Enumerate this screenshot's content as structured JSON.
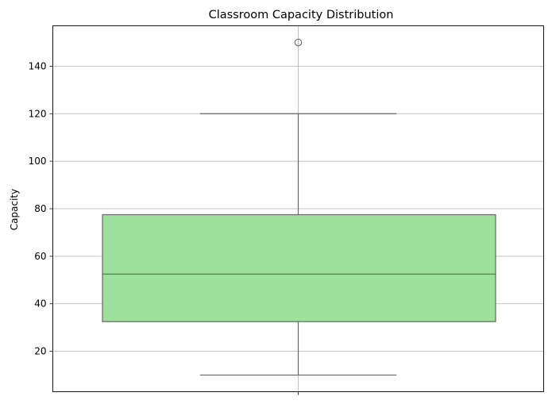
{
  "chart_data": {
    "type": "box",
    "title": "Classroom Capacity Distribution",
    "xlabel": "",
    "ylabel": "Capacity",
    "ylim": [
      3,
      157
    ],
    "yticks": [
      20,
      40,
      60,
      80,
      100,
      120,
      140
    ],
    "grid": true,
    "box": {
      "whisker_low": 10,
      "q1": 32.5,
      "median": 52.5,
      "q3": 77.5,
      "whisker_high": 120,
      "outliers": [
        150
      ]
    },
    "colors": {
      "box_fill": "#9de19d",
      "box_edge": "#666666",
      "grid": "#b0b0b0"
    }
  }
}
